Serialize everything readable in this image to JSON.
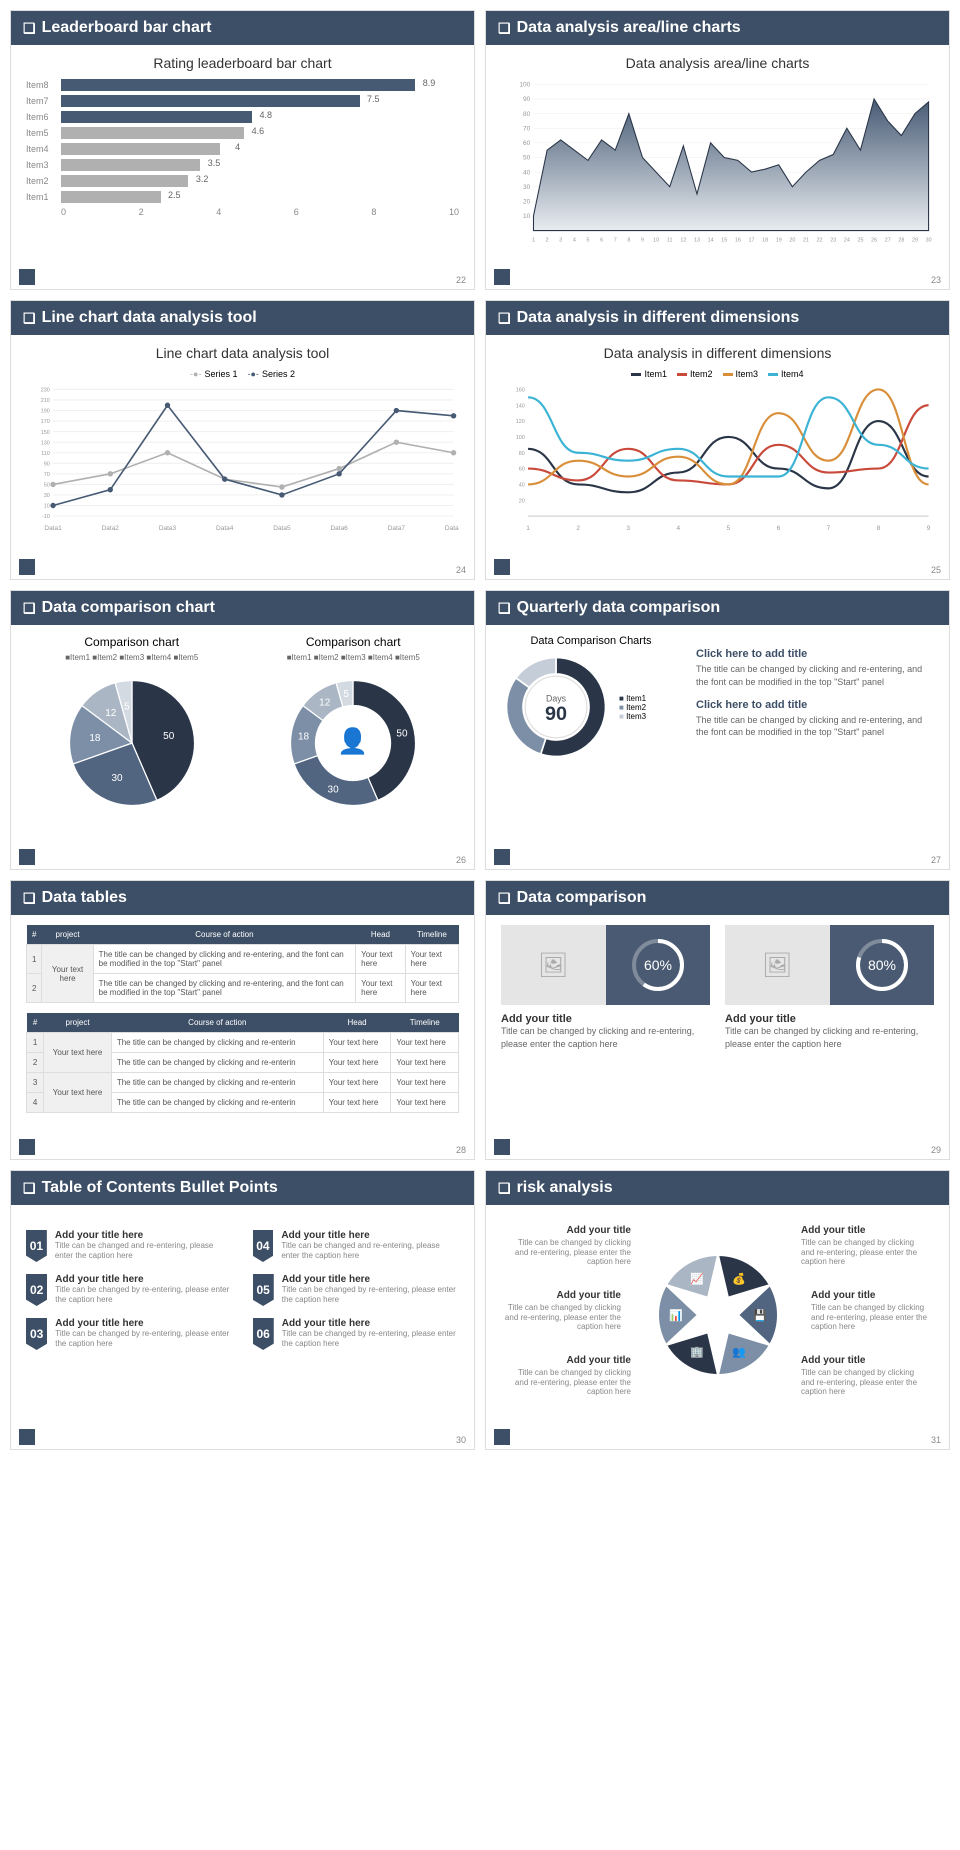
{
  "colors": {
    "header_bg": "#3d4f66",
    "primary": "#475a74",
    "secondary": "#b0b0b0",
    "grey": "#8a8a8a",
    "blue": "#6b7d95",
    "orange": "#d98f3a",
    "red": "#c94a3b",
    "cyan": "#3bb3d4"
  },
  "slides": [
    {
      "id": 22,
      "header": "Leaderboard bar chart",
      "chart_title": "Rating leaderboard bar chart",
      "type": "hbar",
      "bars": [
        {
          "label": "Item8",
          "value": 8.9,
          "color": "#475a74"
        },
        {
          "label": "Item7",
          "value": 7.5,
          "color": "#475a74"
        },
        {
          "label": "Item6",
          "value": 4.8,
          "color": "#475a74"
        },
        {
          "label": "Item5",
          "value": 4.6,
          "color": "#b0b0b0"
        },
        {
          "label": "Item4",
          "value": 4.0,
          "color": "#b0b0b0"
        },
        {
          "label": "Item3",
          "value": 3.5,
          "color": "#b0b0b0"
        },
        {
          "label": "Item2",
          "value": 3.2,
          "color": "#b0b0b0"
        },
        {
          "label": "Item1",
          "value": 2.5,
          "color": "#b0b0b0"
        }
      ],
      "xmax": 10,
      "xticks": [
        0,
        2,
        4,
        6,
        8,
        10
      ]
    },
    {
      "id": 23,
      "header": "Data analysis area/line charts",
      "chart_title": "Data analysis area/line charts",
      "type": "area",
      "ymax": 100,
      "yticks": [
        10,
        20,
        30,
        40,
        50,
        60,
        70,
        80,
        90,
        100
      ],
      "xlabels": [
        1,
        2,
        3,
        4,
        5,
        6,
        7,
        8,
        9,
        10,
        11,
        12,
        13,
        14,
        15,
        16,
        17,
        18,
        19,
        20,
        21,
        22,
        23,
        24,
        25,
        26,
        27,
        28,
        29,
        30
      ],
      "values": [
        10,
        55,
        62,
        55,
        48,
        62,
        55,
        80,
        50,
        40,
        30,
        58,
        25,
        60,
        50,
        48,
        40,
        42,
        45,
        30,
        40,
        48,
        52,
        70,
        55,
        90,
        75,
        65,
        80,
        88
      ],
      "fill_top": "#475a74",
      "fill_bottom": "#e8ecf0",
      "stroke": "#2a3648"
    },
    {
      "id": 24,
      "header": "Line chart data analysis tool",
      "chart_title": "Line chart data analysis tool",
      "type": "line2",
      "legend": [
        "Series 1",
        "Series 2"
      ],
      "legend_colors": [
        "#b0b0b0",
        "#475a74"
      ],
      "xlabels": [
        "Data1",
        "Data2",
        "Data3",
        "Data4",
        "Data5",
        "Data6",
        "Data7",
        "Data8"
      ],
      "yticks": [
        -10,
        10,
        30,
        50,
        70,
        90,
        110,
        130,
        150,
        170,
        190,
        210,
        230
      ],
      "series1": [
        50,
        70,
        110,
        60,
        45,
        80,
        130,
        110
      ],
      "series2": [
        10,
        40,
        200,
        60,
        30,
        70,
        190,
        180
      ]
    },
    {
      "id": 25,
      "header": "Data analysis in different dimensions",
      "chart_title": "Data analysis in different dimensions",
      "type": "multiline",
      "legend": [
        "Item1",
        "Item2",
        "Item3",
        "Item4"
      ],
      "legend_colors": [
        "#2a3648",
        "#c94a3b",
        "#d98f3a",
        "#3bb3d4"
      ],
      "xlabels": [
        1,
        2,
        3,
        4,
        5,
        6,
        7,
        8,
        9
      ],
      "yticks": [
        20,
        40,
        60,
        80,
        100,
        120,
        140,
        160
      ],
      "item1": [
        85,
        40,
        30,
        55,
        100,
        60,
        35,
        120,
        50
      ],
      "item2": [
        60,
        45,
        85,
        45,
        40,
        90,
        55,
        60,
        140
      ],
      "item3": [
        40,
        70,
        50,
        75,
        40,
        130,
        70,
        160,
        40
      ],
      "item4": [
        150,
        80,
        70,
        85,
        50,
        50,
        150,
        90,
        60
      ]
    },
    {
      "id": 26,
      "header": "Data comparison chart",
      "pies": [
        {
          "title": "Comparison chart",
          "legend": "■Item1 ■Item2 ■Item3 ■Item4 ■Item5",
          "type": "pie",
          "slices": [
            {
              "label": "50",
              "value": 50,
              "color": "#2a3648"
            },
            {
              "label": "30",
              "value": 30,
              "color": "#516480"
            },
            {
              "label": "18",
              "value": 18,
              "color": "#7d8fa6"
            },
            {
              "label": "12",
              "value": 12,
              "color": "#aab6c4"
            },
            {
              "label": "5",
              "value": 5,
              "color": "#d4dae2"
            }
          ]
        },
        {
          "title": "Comparison chart",
          "legend": "■Item1 ■Item2 ■Item3 ■Item4 ■Item5",
          "type": "donut",
          "slices": [
            {
              "label": "50",
              "value": 50,
              "color": "#2a3648"
            },
            {
              "label": "30",
              "value": 30,
              "color": "#516480"
            },
            {
              "label": "18",
              "value": 18,
              "color": "#7d8fa6"
            },
            {
              "label": "12",
              "value": 12,
              "color": "#aab6c4"
            },
            {
              "label": "5",
              "value": 5,
              "color": "#d4dae2"
            }
          ]
        }
      ]
    },
    {
      "id": 27,
      "header": "Quarterly data comparison",
      "donut_title": "Data Comparison Charts",
      "center_label": "Days",
      "center_value": "90",
      "legend": [
        "Item1",
        "Item2",
        "Item3"
      ],
      "segments": [
        {
          "value": 55,
          "color": "#2a3648"
        },
        {
          "value": 30,
          "color": "#7d8fa6"
        },
        {
          "value": 15,
          "color": "#c5cdd8"
        }
      ],
      "blocks": [
        {
          "title": "Click here to add title",
          "body": "The title can be changed by clicking and re-entering, and the font can be modified in the top \"Start\" panel"
        },
        {
          "title": "Click here to add title",
          "body": "The title can be changed by clicking and re-entering, and the font can be modified in the top \"Start\" panel"
        }
      ]
    },
    {
      "id": 28,
      "header": "Data tables",
      "table1": {
        "columns": [
          "#",
          "project",
          "Course of action",
          "Head",
          "Timeline"
        ],
        "rows": [
          [
            "1",
            "Your text here",
            "The title can be changed by clicking and re-entering, and the font can be modified in the top \"Start\" panel",
            "Your text here",
            "Your text here"
          ],
          [
            "2",
            "",
            "The title can be changed by clicking and re-entering, and the font can be modified in the top \"Start\" panel",
            "Your text here",
            "Your text here"
          ]
        ]
      },
      "table2": {
        "columns": [
          "#",
          "project",
          "Course of action",
          "Head",
          "Timeline"
        ],
        "rows": [
          [
            "1",
            "Your text here",
            "The title can be changed by clicking and re-enterin",
            "Your text here",
            "Your text here"
          ],
          [
            "2",
            "",
            "The title can be changed by clicking and re-enterin",
            "Your text here",
            "Your text here"
          ],
          [
            "3",
            "Your text here",
            "The title can be changed by clicking and re-enterin",
            "Your text here",
            "Your text here"
          ],
          [
            "4",
            "",
            "The title can be changed by clicking and re-enterin",
            "Your text here",
            "Your text here"
          ]
        ]
      }
    },
    {
      "id": 29,
      "header": "Data comparison",
      "cards": [
        {
          "percent": 60,
          "title": "Add your title",
          "body": "Title can be changed by clicking and re-entering, please enter the caption here"
        },
        {
          "percent": 80,
          "title": "Add your title",
          "body": "Title can be changed by clicking and re-entering, please enter the caption here"
        }
      ]
    },
    {
      "id": 30,
      "header": "Table of Contents Bullet Points",
      "items": [
        {
          "num": "01",
          "title": "Add your title here",
          "body": "Title can be changed and re-entering, please enter the caption here"
        },
        {
          "num": "04",
          "title": "Add your title here",
          "body": "Title can be changed and re-entering, please enter the caption here"
        },
        {
          "num": "02",
          "title": "Add your title here",
          "body": "Title can be changed by re-entering, please enter the caption here"
        },
        {
          "num": "05",
          "title": "Add your title here",
          "body": "Title can be changed by re-entering, please enter the caption here"
        },
        {
          "num": "03",
          "title": "Add your title here",
          "body": "Title can be changed by re-entering, please enter the caption here"
        },
        {
          "num": "06",
          "title": "Add your title here",
          "body": "Title can be changed by re-entering, please enter the caption here"
        }
      ]
    },
    {
      "id": 31,
      "header": "risk analysis",
      "labels": [
        {
          "title": "Add your title",
          "body": "Title can be changed by clicking and re-entering, please enter the caption here",
          "pos": "tl"
        },
        {
          "title": "Add your title",
          "body": "Title can be changed by clicking and re-entering, please enter the caption here",
          "pos": "tr"
        },
        {
          "title": "Add your title",
          "body": "Title can be changed by clicking and re-entering, please enter the caption here",
          "pos": "ml"
        },
        {
          "title": "Add your title",
          "body": "Title can be changed by clicking and re-entering, please enter the caption here",
          "pos": "mr"
        },
        {
          "title": "Add your title",
          "body": "Title can be changed by clicking and re-entering, please enter the caption here",
          "pos": "bl"
        },
        {
          "title": "Add your title",
          "body": "Title can be changed by clicking and re-entering, please enter the caption here",
          "pos": "br"
        }
      ],
      "seg_colors": [
        "#2a3648",
        "#516480",
        "#7d8fa6",
        "#2a3648",
        "#7d8fa6",
        "#aab6c4"
      ],
      "icons": [
        "💰",
        "💾",
        "👥",
        "🏢",
        "📊",
        "📈"
      ]
    }
  ]
}
